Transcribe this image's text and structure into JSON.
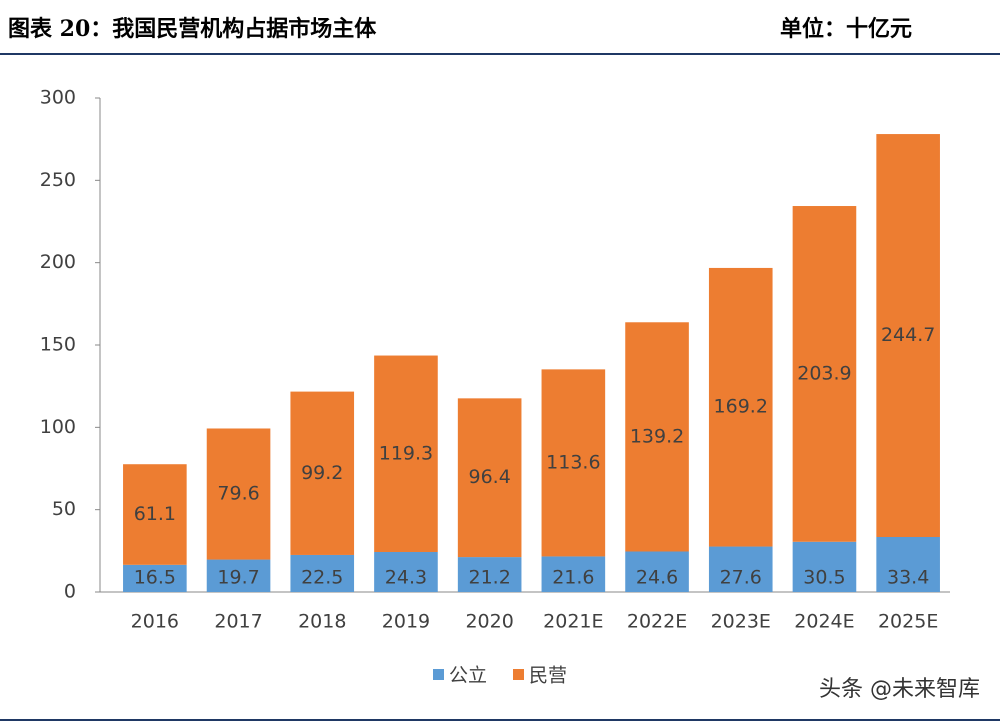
{
  "chart_data": {
    "type": "stacked_bar",
    "title": "图表 20：我国民营机构占据市场主体",
    "unit": "单位：十亿元",
    "categories": [
      "2016",
      "2017",
      "2018",
      "2019",
      "2020",
      "2021E",
      "2022E",
      "2023E",
      "2024E",
      "2025E"
    ],
    "series": [
      {
        "name": "公立",
        "color": "#5b9bd5",
        "values": [
          16.5,
          19.7,
          22.5,
          24.3,
          21.2,
          21.6,
          24.6,
          27.6,
          30.5,
          33.4
        ]
      },
      {
        "name": "民营",
        "color": "#ed7d31",
        "values": [
          61.1,
          79.6,
          99.2,
          119.3,
          96.4,
          113.6,
          139.2,
          169.2,
          203.9,
          244.7
        ]
      }
    ],
    "ylim": [
      0,
      300
    ],
    "yticks": [
      0,
      50,
      100,
      150,
      200,
      250,
      300
    ],
    "grid": false,
    "legend": "bottom",
    "watermark": "头条 @未来智库"
  }
}
